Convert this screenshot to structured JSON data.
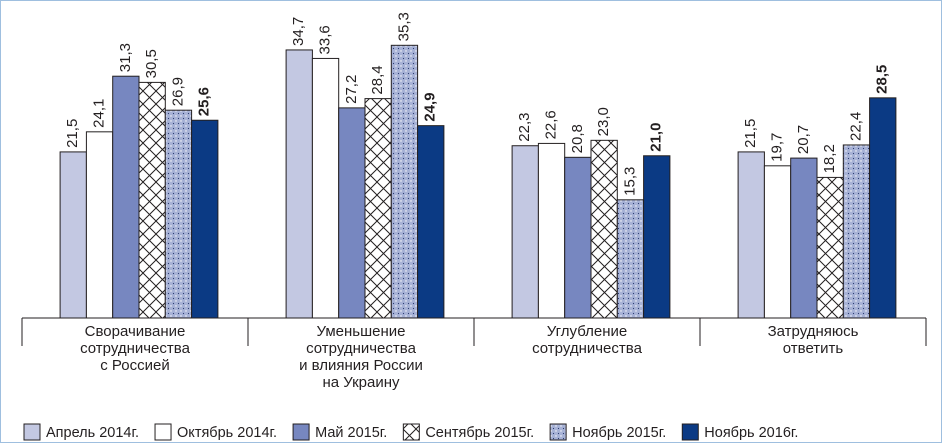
{
  "chart_data": {
    "type": "bar",
    "categories": [
      "Сворачивание\nсотрудничества\nс Россией",
      "Уменьшение\nсотрудничества\nи влияния России\nна Украину",
      "Углубление\nсотрудничества",
      "Затрудняюсь\nответить"
    ],
    "series": [
      {
        "name": "Апрель 2014г.",
        "color": "#c3c8e2",
        "values": [
          21.5,
          34.7,
          22.3,
          21.5
        ],
        "value_labels": [
          "21,5",
          "34,7",
          "22,3",
          "21,5"
        ]
      },
      {
        "name": "Октябрь 2014г.",
        "color": "#ffffff",
        "values": [
          24.1,
          33.6,
          22.6,
          19.7
        ],
        "value_labels": [
          "24,1",
          "33,6",
          "22,6",
          "19,7"
        ]
      },
      {
        "name": "Май 2015г.",
        "color": "#7787c0",
        "values": [
          31.3,
          27.2,
          20.8,
          20.7
        ],
        "value_labels": [
          "31,3",
          "27,2",
          "20,8",
          "20,7"
        ]
      },
      {
        "name": "Сентябрь 2015г.",
        "color": "#ffffff",
        "pattern": "crosshatch",
        "values": [
          30.5,
          28.4,
          23.0,
          18.2
        ],
        "value_labels": [
          "30,5",
          "28,4",
          "23,0",
          "18,2"
        ]
      },
      {
        "name": "Ноябрь 2015г.",
        "color": "#a7b2d6",
        "pattern": "dots",
        "values": [
          26.9,
          35.3,
          15.3,
          22.4
        ],
        "value_labels": [
          "26,9",
          "35,3",
          "15,3",
          "22,4"
        ]
      },
      {
        "name": "Ноябрь 2016г.",
        "color": "#0b3a84",
        "bold_labels": true,
        "values": [
          25.6,
          24.9,
          21.0,
          28.5
        ],
        "value_labels": [
          "25,6",
          "24,9",
          "21,0",
          "28,5"
        ]
      }
    ],
    "ylim": [
      0,
      40
    ],
    "legend": "bottom"
  }
}
